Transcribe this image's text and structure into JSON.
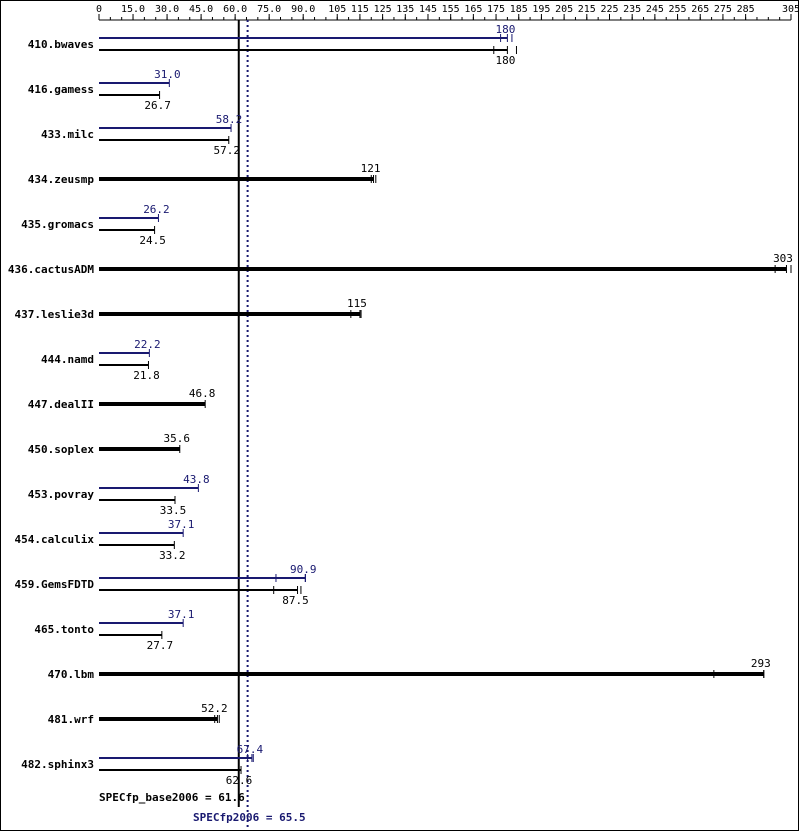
{
  "chart_data": {
    "type": "bar",
    "orientation": "horizontal",
    "xlim": [
      0,
      305
    ],
    "x_ticks": [
      0,
      15.0,
      30.0,
      45.0,
      60.0,
      75.0,
      90.0,
      105,
      115,
      125,
      135,
      145,
      155,
      165,
      175,
      185,
      195,
      205,
      215,
      225,
      235,
      245,
      255,
      265,
      275,
      285,
      305
    ],
    "x_tick_labels": [
      "0",
      "15.0",
      "30.0",
      "45.0",
      "60.0",
      "75.0",
      "90.0",
      "105",
      "115",
      "125",
      "135",
      "145",
      "155",
      "165",
      "175",
      "185",
      "195",
      "205",
      "215",
      "225",
      "235",
      "245",
      "255",
      "265",
      "275",
      "285",
      "305"
    ],
    "series_colors": {
      "peak": "#191970",
      "base": "#000000"
    },
    "benchmarks": [
      {
        "name": "410.bwaves",
        "peak": 180,
        "base": 180,
        "peak_label": "180",
        "base_label": "180",
        "peak_range": [
          177,
          182
        ],
        "base_range": [
          174,
          184
        ]
      },
      {
        "name": "416.gamess",
        "peak": 31.0,
        "base": 26.7,
        "peak_label": "31.0",
        "base_label": "26.7"
      },
      {
        "name": "433.milc",
        "peak": 58.2,
        "base": 57.2,
        "peak_label": "58.2",
        "base_label": "57.2"
      },
      {
        "name": "434.zeusmp",
        "base": 121,
        "base_label": "121",
        "base_range": [
          120,
          122
        ]
      },
      {
        "name": "435.gromacs",
        "peak": 26.2,
        "base": 24.5,
        "peak_label": "26.2",
        "base_label": "24.5"
      },
      {
        "name": "436.cactusADM",
        "base": 303,
        "base_label": "303",
        "base_range": [
          298,
          305
        ]
      },
      {
        "name": "437.leslie3d",
        "base": 115,
        "base_label": "115",
        "base_range": [
          111,
          115.5
        ]
      },
      {
        "name": "444.namd",
        "peak": 22.2,
        "base": 21.8,
        "peak_label": "22.2",
        "base_label": "21.8"
      },
      {
        "name": "447.dealII",
        "base": 46.8,
        "base_label": "46.8"
      },
      {
        "name": "450.soplex",
        "base": 35.6,
        "base_label": "35.6"
      },
      {
        "name": "453.povray",
        "peak": 43.8,
        "base": 33.5,
        "peak_label": "43.8",
        "base_label": "33.5"
      },
      {
        "name": "454.calculix",
        "peak": 37.1,
        "base": 33.2,
        "peak_label": "37.1",
        "base_label": "33.2"
      },
      {
        "name": "459.GemsFDTD",
        "peak": 90.9,
        "base": 87.5,
        "peak_label": "90.9",
        "base_label": "87.5",
        "peak_range": [
          78,
          91
        ],
        "base_range": [
          77,
          89
        ]
      },
      {
        "name": "465.tonto",
        "peak": 37.1,
        "base": 27.7,
        "peak_label": "37.1",
        "base_label": "27.7"
      },
      {
        "name": "470.lbm",
        "base": 293,
        "base_label": "293",
        "base_range": [
          271,
          293
        ]
      },
      {
        "name": "481.wrf",
        "base": 52.2,
        "base_label": "52.2",
        "base_range": [
          51,
          53
        ]
      },
      {
        "name": "482.sphinx3",
        "peak": 67.4,
        "base": 62.6,
        "peak_label": "67.4",
        "base_label": "62.6",
        "peak_range": [
          65.5,
          68
        ]
      }
    ],
    "reference_lines": [
      {
        "name": "base",
        "value": 61.6,
        "label": "SPECfp_base2006 = 61.6",
        "style": "solid",
        "color": "#000000"
      },
      {
        "name": "peak",
        "value": 65.5,
        "label": "SPECfp2006 = 65.5",
        "style": "dotted",
        "color": "#191970"
      }
    ]
  }
}
